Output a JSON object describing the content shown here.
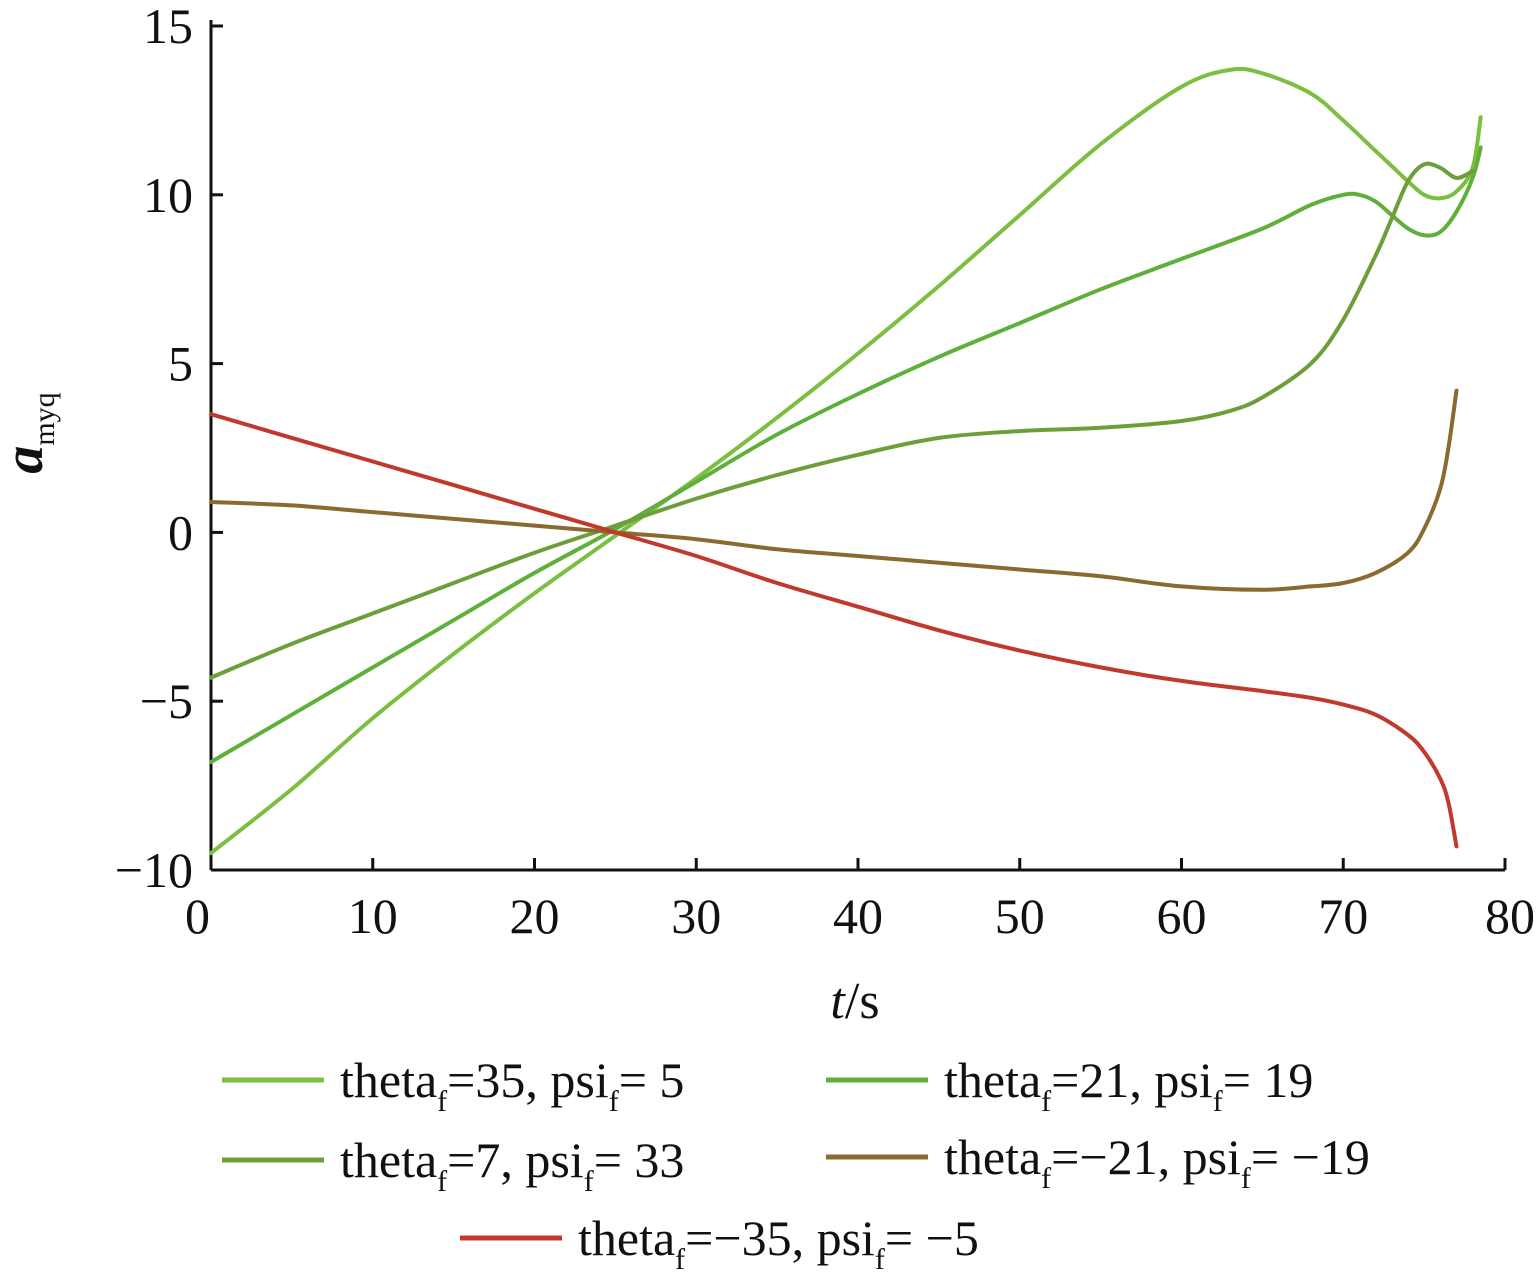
{
  "chart_data": {
    "type": "line",
    "xlabel_italic": "t",
    "xlabel_unit": "/s",
    "ylabel_main": "a",
    "ylabel_sub": "myq",
    "xlim": [
      0,
      80
    ],
    "ylim": [
      -10,
      15
    ],
    "xticks": [
      0,
      10,
      20,
      30,
      40,
      50,
      60,
      70,
      80
    ],
    "yticks": [
      -10,
      -5,
      0,
      5,
      10,
      15
    ],
    "xtick_labels": [
      "0",
      "10",
      "20",
      "30",
      "40",
      "50",
      "60",
      "70",
      "80"
    ],
    "ytick_labels": [
      "−10",
      "−5",
      "0",
      "5",
      "10",
      "15"
    ],
    "grid": false,
    "legend_position": "bottom",
    "series": [
      {
        "name": "theta_f=35, psi_f= 5",
        "legend": {
          "a": "theta",
          "sub": "f",
          "b": "=35, psi",
          "sub2": "f",
          "c": "= 5"
        },
        "color": "#7cbf40",
        "x": [
          0,
          5,
          10,
          15,
          20,
          25,
          30,
          35,
          40,
          45,
          50,
          55,
          60,
          63,
          65,
          68,
          70,
          72,
          74,
          75,
          76,
          77,
          78,
          78.5
        ],
        "y": [
          -9.5,
          -7.6,
          -5.5,
          -3.6,
          -1.8,
          -0.1,
          1.6,
          3.4,
          5.3,
          7.3,
          9.4,
          11.5,
          13.2,
          13.7,
          13.6,
          13.0,
          12.2,
          11.3,
          10.4,
          10.0,
          9.9,
          10.1,
          10.8,
          12.3
        ]
      },
      {
        "name": "theta_f=21, psi_f= 19",
        "legend": {
          "a": "theta",
          "sub": "f",
          "b": "=21, psi",
          "sub2": "f",
          "c": "= 19"
        },
        "color": "#5fb03a",
        "x": [
          0,
          5,
          10,
          15,
          20,
          25,
          30,
          35,
          40,
          45,
          50,
          55,
          60,
          65,
          68,
          70,
          71,
          72,
          73,
          74,
          75,
          76,
          77,
          78,
          78.5
        ],
        "y": [
          -6.8,
          -5.4,
          -4.0,
          -2.6,
          -1.2,
          0.1,
          1.5,
          2.9,
          4.1,
          5.2,
          6.2,
          7.2,
          8.1,
          9.0,
          9.7,
          10.0,
          10.0,
          9.8,
          9.4,
          9.0,
          8.8,
          8.9,
          9.5,
          10.5,
          11.4
        ]
      },
      {
        "name": "theta_f=7, psi_f= 33",
        "legend": {
          "a": "theta",
          "sub": "f",
          "b": "=7, psi",
          "sub2": "f",
          "c": "= 33"
        },
        "color": "#6e9e3a",
        "x": [
          0,
          5,
          10,
          15,
          20,
          25,
          30,
          35,
          40,
          45,
          50,
          55,
          60,
          63,
          65,
          68,
          70,
          72,
          73,
          74,
          75,
          76,
          77,
          78
        ],
        "y": [
          -4.3,
          -3.3,
          -2.4,
          -1.5,
          -0.6,
          0.2,
          1.0,
          1.7,
          2.3,
          2.8,
          3.0,
          3.1,
          3.3,
          3.6,
          4.0,
          5.0,
          6.3,
          8.2,
          9.3,
          10.4,
          10.9,
          10.8,
          10.5,
          10.7
        ]
      },
      {
        "name": "theta_f=-21, psi_f= -19",
        "legend": {
          "a": "theta",
          "sub": "f",
          "b": "=−21, psi",
          "sub2": "f",
          "c": "= −19"
        },
        "color": "#8b6a2f",
        "x": [
          0,
          5,
          10,
          15,
          20,
          25,
          30,
          35,
          40,
          45,
          50,
          55,
          60,
          65,
          68,
          70,
          72,
          74,
          75,
          76,
          76.5,
          77
        ],
        "y": [
          0.9,
          0.8,
          0.6,
          0.4,
          0.2,
          0.0,
          -0.2,
          -0.5,
          -0.7,
          -0.9,
          -1.1,
          -1.3,
          -1.6,
          -1.7,
          -1.6,
          -1.5,
          -1.2,
          -0.6,
          0.1,
          1.3,
          2.5,
          4.2
        ]
      },
      {
        "name": "theta_f=-35, psi_f= -5",
        "legend": {
          "a": "theta",
          "sub": "f",
          "b": "=−35, psi",
          "sub2": "f",
          "c": "= −5"
        },
        "color": "#c0392b",
        "x": [
          0,
          5,
          10,
          15,
          20,
          25,
          30,
          35,
          40,
          45,
          50,
          55,
          60,
          65,
          68,
          70,
          72,
          74,
          75,
          76,
          76.5,
          77
        ],
        "y": [
          3.5,
          2.8,
          2.1,
          1.4,
          0.7,
          0.0,
          -0.7,
          -1.5,
          -2.2,
          -2.9,
          -3.5,
          -4.0,
          -4.4,
          -4.7,
          -4.9,
          -5.1,
          -5.4,
          -6.0,
          -6.5,
          -7.3,
          -8.0,
          -9.3
        ]
      }
    ]
  }
}
